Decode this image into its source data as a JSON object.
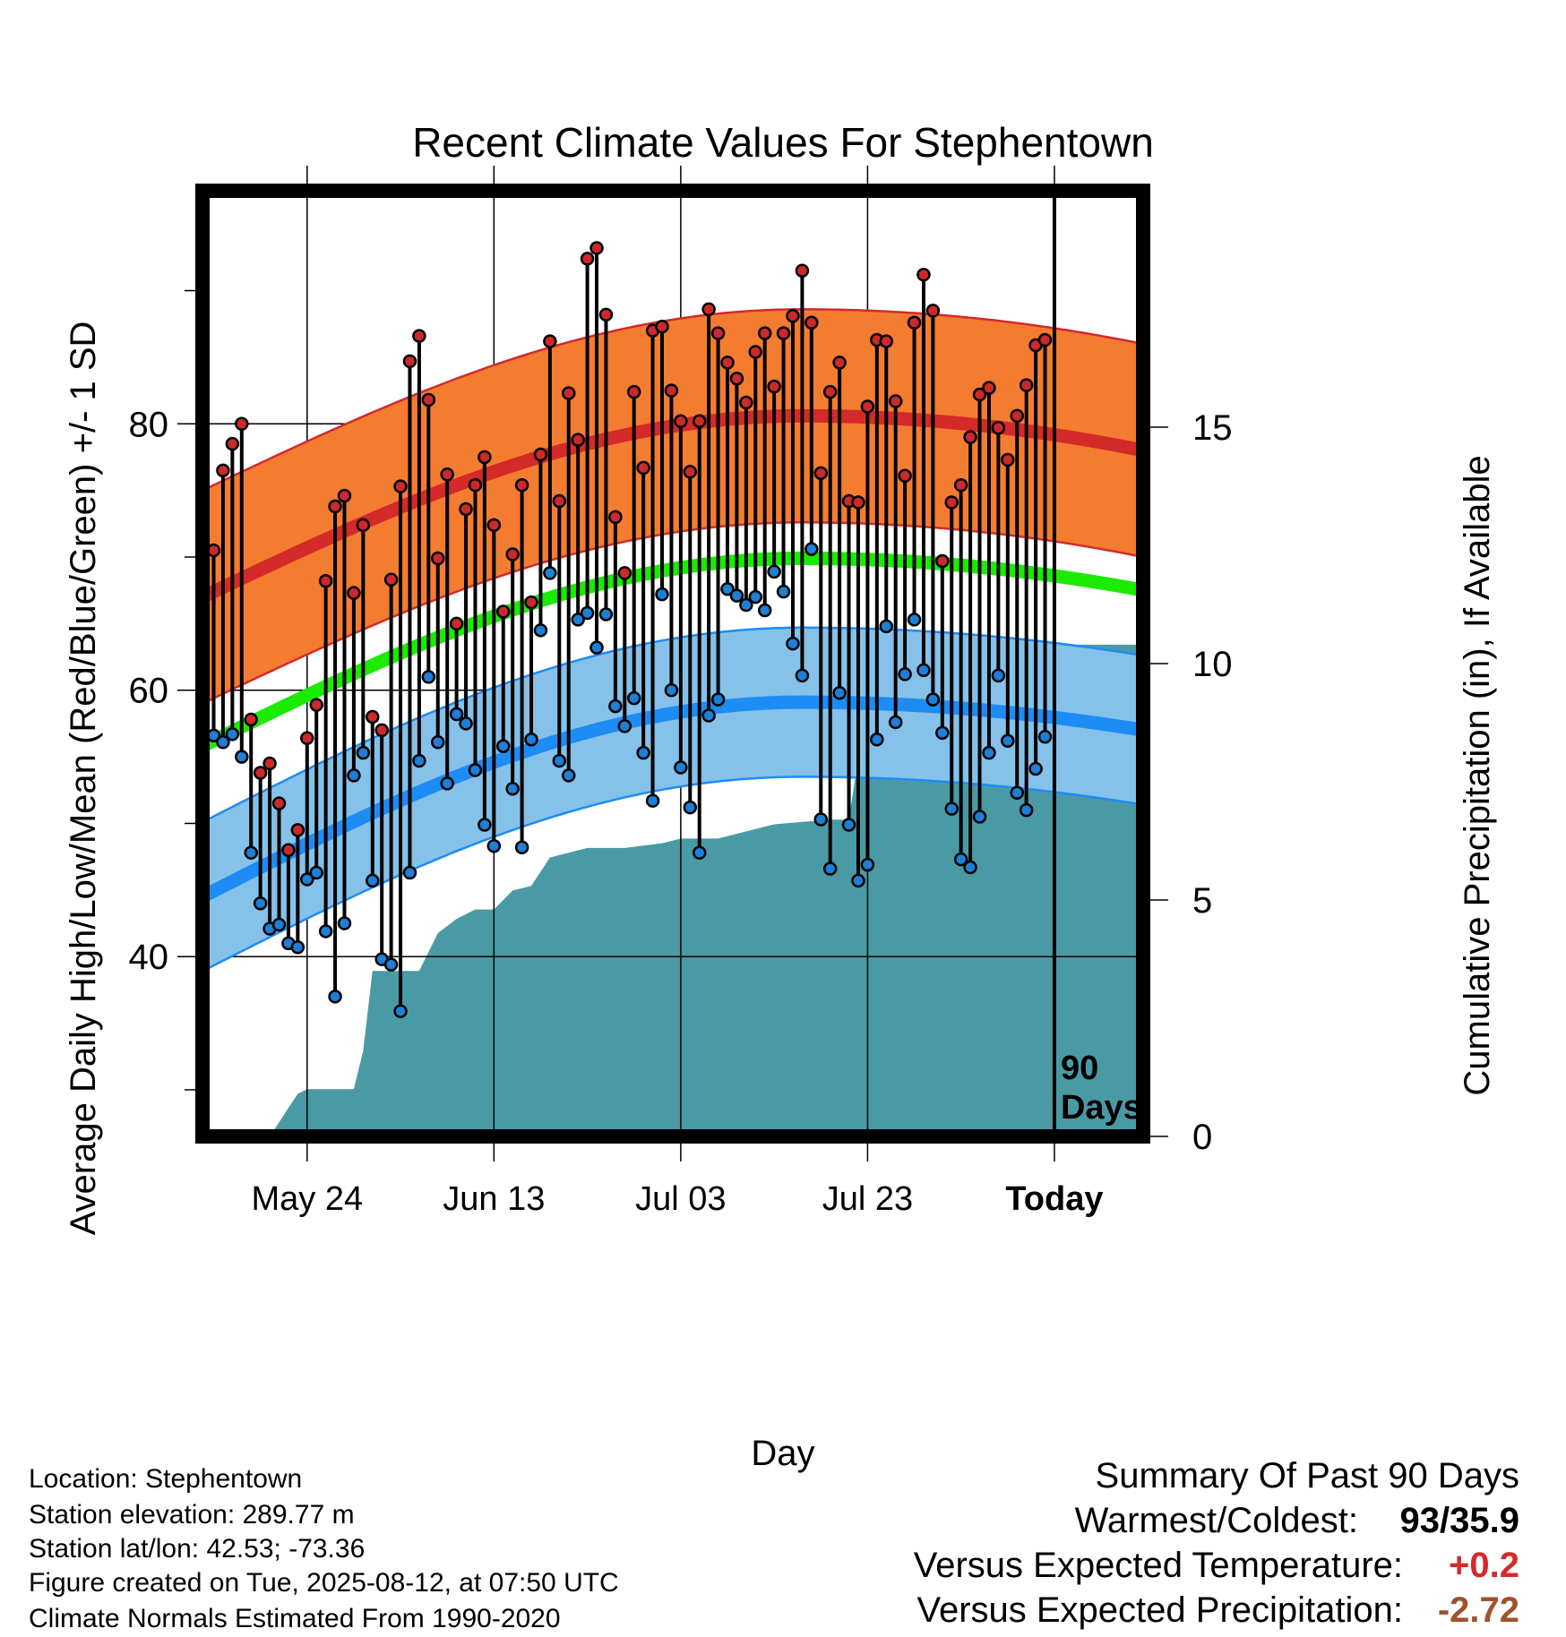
{
  "chart_data": {
    "type": "line",
    "title": "Recent Climate Values For Stephentown",
    "xlabel": "Day",
    "ylabel": "Average Daily High/Low/Mean (Red/Blue/Green) +/- 1 SD",
    "y2label": "Cumulative Precipitation (in), If Available",
    "xtick_labels": [
      "May 24",
      "Jun 13",
      "Jul 03",
      "Jul 23",
      "Today"
    ],
    "xtick_days": [
      -80,
      -60,
      -40,
      -20,
      0
    ],
    "ylim": [
      26.5,
      97.5
    ],
    "yticks": [
      40,
      60,
      80
    ],
    "y2lim": [
      0,
      20
    ],
    "y2ticks": [
      0,
      5,
      10,
      15
    ],
    "xlim": [
      -91.2,
      9.5
    ],
    "today_marker": {
      "x": 0,
      "label_line1": "90",
      "label_line2": "Days"
    },
    "grid": true,
    "daily": {
      "day": [
        -90,
        -89,
        -88,
        -87,
        -86,
        -85,
        -84,
        -83,
        -82,
        -81,
        -80,
        -79,
        -78,
        -77,
        -76,
        -75,
        -74,
        -73,
        -72,
        -71,
        -70,
        -69,
        -68,
        -67,
        -66,
        -65,
        -64,
        -63,
        -62,
        -61,
        -60,
        -59,
        -58,
        -57,
        -56,
        -55,
        -54,
        -53,
        -52,
        -51,
        -50,
        -49,
        -48,
        -47,
        -46,
        -45,
        -44,
        -43,
        -42,
        -41,
        -40,
        -39,
        -38,
        -37,
        -36,
        -35,
        -34,
        -33,
        -32,
        -31,
        -30,
        -29,
        -28,
        -27,
        -26,
        -25,
        -24,
        -23,
        -22,
        -21,
        -20,
        -19,
        -18,
        -17,
        -16,
        -15,
        -14,
        -13,
        -12,
        -11,
        -10,
        -9,
        -8,
        -7,
        -6,
        -5,
        -4,
        -3,
        -2,
        -1
      ],
      "high": [
        70.5,
        76.5,
        78.5,
        80,
        57.8,
        53.8,
        54.5,
        51.5,
        48,
        49.5,
        56.4,
        58.9,
        68.2,
        73.8,
        74.6,
        67.3,
        72.4,
        58,
        57,
        68.3,
        75.3,
        84.7,
        86.6,
        81.8,
        69.9,
        76.2,
        65,
        73.6,
        75.4,
        77.5,
        72.4,
        65.9,
        70.2,
        75.4,
        66.6,
        77.7,
        86.2,
        74.2,
        82.3,
        78.8,
        92.4,
        93.2,
        88.2,
        73,
        68.8,
        82.4,
        76.7,
        87,
        87.3,
        82.5,
        80.2,
        76.4,
        80.2,
        88.6,
        86.8,
        84.6,
        83.4,
        81.6,
        85.4,
        86.8,
        82.8,
        86.8,
        88.1,
        91.5,
        87.6,
        76.3,
        82.4,
        84.6,
        74.2,
        74.1,
        81.3,
        86.3,
        86.2,
        81.7,
        76.1,
        87.6,
        91.2,
        88.5,
        69.7,
        74.1,
        75.4,
        79,
        82.2,
        82.7,
        79.7,
        77.3,
        80.6,
        82.9,
        85.9,
        86.3
      ],
      "low": [
        56.6,
        56.1,
        56.7,
        55,
        47.8,
        44,
        42.1,
        42.4,
        41,
        40.7,
        45.8,
        46.3,
        41.9,
        37,
        42.5,
        53.6,
        55.3,
        45.7,
        39.8,
        39.4,
        35.9,
        46.3,
        54.7,
        61,
        56.1,
        53,
        58.2,
        57.5,
        54,
        49.9,
        48.3,
        55.8,
        52.6,
        48.2,
        56.3,
        64.5,
        68.8,
        54.7,
        53.6,
        65.3,
        65.8,
        63.2,
        65.7,
        58.8,
        57.3,
        59.4,
        55.3,
        51.7,
        67.2,
        60,
        54.2,
        51.2,
        47.8,
        58.1,
        59.3,
        67.6,
        67.1,
        66.4,
        67,
        66,
        68.9,
        67.4,
        63.5,
        61.1,
        70.6,
        50.3,
        46.6,
        59.8,
        49.9,
        45.7,
        46.9,
        56.3,
        64.8,
        57.6,
        61.2,
        65.3,
        61.5,
        59.3,
        56.8,
        51.1,
        47.3,
        46.7,
        50.5,
        55.3,
        61.1,
        56.2,
        52.3,
        51,
        54.1,
        56.5
      ]
    },
    "normals": {
      "high_start": 67,
      "high_peak": 80.6,
      "high_end": 78,
      "high_sd": 8,
      "low_start": 44.5,
      "low_peak": 59.1,
      "low_end": 57,
      "low_sd": 5.6,
      "mean_start": 55.8,
      "mean_peak": 69.9,
      "mean_end": 67.5
    },
    "precip_cumulative": {
      "x": [
        -89,
        -84,
        -83,
        -82,
        -81,
        -80,
        -77,
        -75,
        -74,
        -73,
        -71,
        -68,
        -67,
        -66,
        -64,
        -62,
        -60,
        -58,
        -56,
        -54,
        -52,
        -50,
        -46,
        -42,
        -40,
        -36,
        -32,
        -30,
        -24,
        -22,
        -21,
        -20,
        -15,
        -14,
        -12,
        -11,
        -9,
        -5,
        -3,
        0,
        9.5
      ],
      "y": [
        0,
        0,
        0.3,
        0.6,
        0.9,
        1,
        1,
        1,
        1.8,
        3.5,
        3.5,
        3.5,
        3.9,
        4.3,
        4.6,
        4.8,
        4.8,
        5.2,
        5.3,
        5.9,
        6,
        6.1,
        6.1,
        6.2,
        6.3,
        6.3,
        6.5,
        6.6,
        6.7,
        6.7,
        8,
        8,
        8,
        8.4,
        9,
        9,
        10.1,
        10.2,
        10.4,
        10.4,
        10.4
      ]
    },
    "colors": {
      "high_band": "#f47c30",
      "high_line": "#d42a2a",
      "high_marker": "#cc2a2a",
      "low_band": "#85c1e9",
      "low_line": "#1e8cf5",
      "low_marker": "#1e7fd6",
      "mean_line": "#1aeb00",
      "precip_fill": "#4a9aa6",
      "warm_value": "#d42a2a",
      "precip_value": "#a0522d"
    }
  },
  "info": {
    "location": "Location: Stephentown",
    "elevation": "Station elevation: 289.77 m",
    "latlon": "Station lat/lon: 42.53; -73.36",
    "created": "Figure created on Tue, 2025-08-12, at 07:50 UTC",
    "normals": "Climate Normals Estimated From 1990-2020"
  },
  "summary": {
    "heading": "Summary Of Past 90 Days",
    "warmest_label": "Warmest/Coldest:",
    "warmest_value": "93/35.9",
    "temp_label": "Versus Expected Temperature:",
    "temp_value": "+0.2",
    "precip_label": "Versus Expected Precipitation:",
    "precip_value": "-2.72"
  }
}
